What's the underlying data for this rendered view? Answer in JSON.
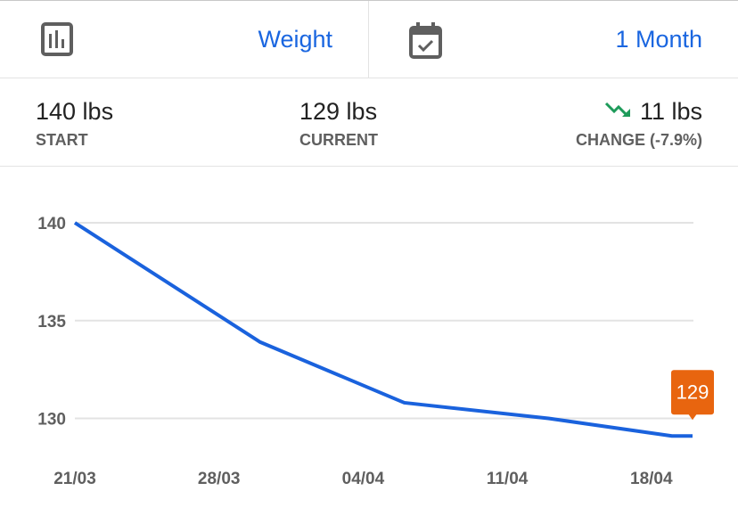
{
  "header": {
    "metric_icon": "bar-chart-icon",
    "metric_label": "Weight",
    "period_icon": "calendar-check-icon",
    "period_label": "1 Month"
  },
  "stats": {
    "start": {
      "value": "140 lbs",
      "label": "START"
    },
    "current": {
      "value": "129 lbs",
      "label": "CURRENT"
    },
    "change": {
      "value": "11 lbs",
      "label": "CHANGE (-7.9%)",
      "icon": "trending-down-icon",
      "color": "#1e9b5a"
    }
  },
  "colors": {
    "accent": "#1a66e0",
    "line": "#1a62dd",
    "marker": "#e8650f"
  },
  "chart_data": {
    "type": "line",
    "x": [
      "21/03",
      "30/03",
      "06/04",
      "13/04",
      "19/04",
      "20/04"
    ],
    "values": [
      140,
      133.9,
      130.8,
      130.0,
      129.1,
      129.1
    ],
    "x_ticks": [
      "21/03",
      "28/03",
      "04/04",
      "11/04",
      "18/04"
    ],
    "y_ticks": [
      140,
      135,
      130
    ],
    "ylim": [
      128.5,
      140
    ],
    "grid": true,
    "last_value_label": "129"
  }
}
